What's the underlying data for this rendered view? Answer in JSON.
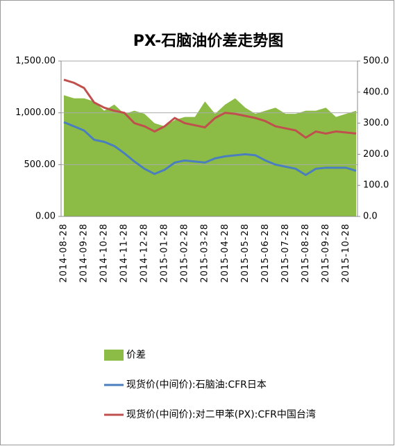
{
  "chart_data": {
    "type": "line",
    "title": "PX-石脑油价差走势图",
    "categories": [
      "2014-08-28",
      null,
      "2014-09-28",
      null,
      "2014-10-28",
      null,
      "2014-11-28",
      null,
      "2014-12-28",
      null,
      "2015-01-28",
      null,
      "2015-02-28",
      null,
      "2015-03-28",
      null,
      "2015-04-28",
      null,
      "2015-05-28",
      null,
      "2015-06-28",
      null,
      "2015-07-28",
      null,
      "2015-08-28",
      null,
      "2015-09-28",
      null,
      "2015-10-28",
      null
    ],
    "series": [
      {
        "name": "价差",
        "type": "area",
        "axis": "y2",
        "color": "#8cbc46",
        "values": [
          390,
          380,
          380,
          370,
          340,
          360,
          330,
          340,
          330,
          300,
          290,
          310,
          320,
          320,
          370,
          330,
          360,
          380,
          350,
          330,
          340,
          350,
          330,
          330,
          340,
          340,
          350,
          320,
          330,
          340
        ]
      },
      {
        "name": "现货价(中间价):石脑油:CFR日本",
        "type": "line",
        "color": "#4a7ebf",
        "values": [
          910,
          870,
          830,
          740,
          720,
          680,
          610,
          530,
          460,
          410,
          450,
          520,
          540,
          530,
          520,
          560,
          580,
          590,
          600,
          590,
          540,
          500,
          480,
          460,
          400,
          460,
          470,
          470,
          470,
          440
        ]
      },
      {
        "name": "现货价(中间价):对二甲苯(PX):CFR中国台湾",
        "type": "line",
        "color": "#c0504d",
        "values": [
          1320,
          1290,
          1240,
          1100,
          1050,
          1020,
          1000,
          900,
          870,
          820,
          870,
          950,
          900,
          880,
          860,
          950,
          1000,
          990,
          970,
          950,
          920,
          870,
          850,
          830,
          760,
          820,
          800,
          820,
          810,
          800
        ]
      }
    ],
    "ylim": [
      0,
      1500
    ],
    "yticks": [
      {
        "value": 0,
        "label": "0.00"
      },
      {
        "value": 500,
        "label": "500.00"
      },
      {
        "value": 1000,
        "label": "1,000.00"
      },
      {
        "value": 1500,
        "label": "1,500.00"
      }
    ],
    "y2lim": [
      0,
      500
    ],
    "y2ticks": [
      {
        "value": 0,
        "label": "0.0"
      },
      {
        "value": 100,
        "label": "100.0"
      },
      {
        "value": 200,
        "label": "200.0"
      },
      {
        "value": 300,
        "label": "300.0"
      },
      {
        "value": 400,
        "label": "400.0"
      },
      {
        "value": 500,
        "label": "500.0"
      }
    ],
    "grid": true
  }
}
